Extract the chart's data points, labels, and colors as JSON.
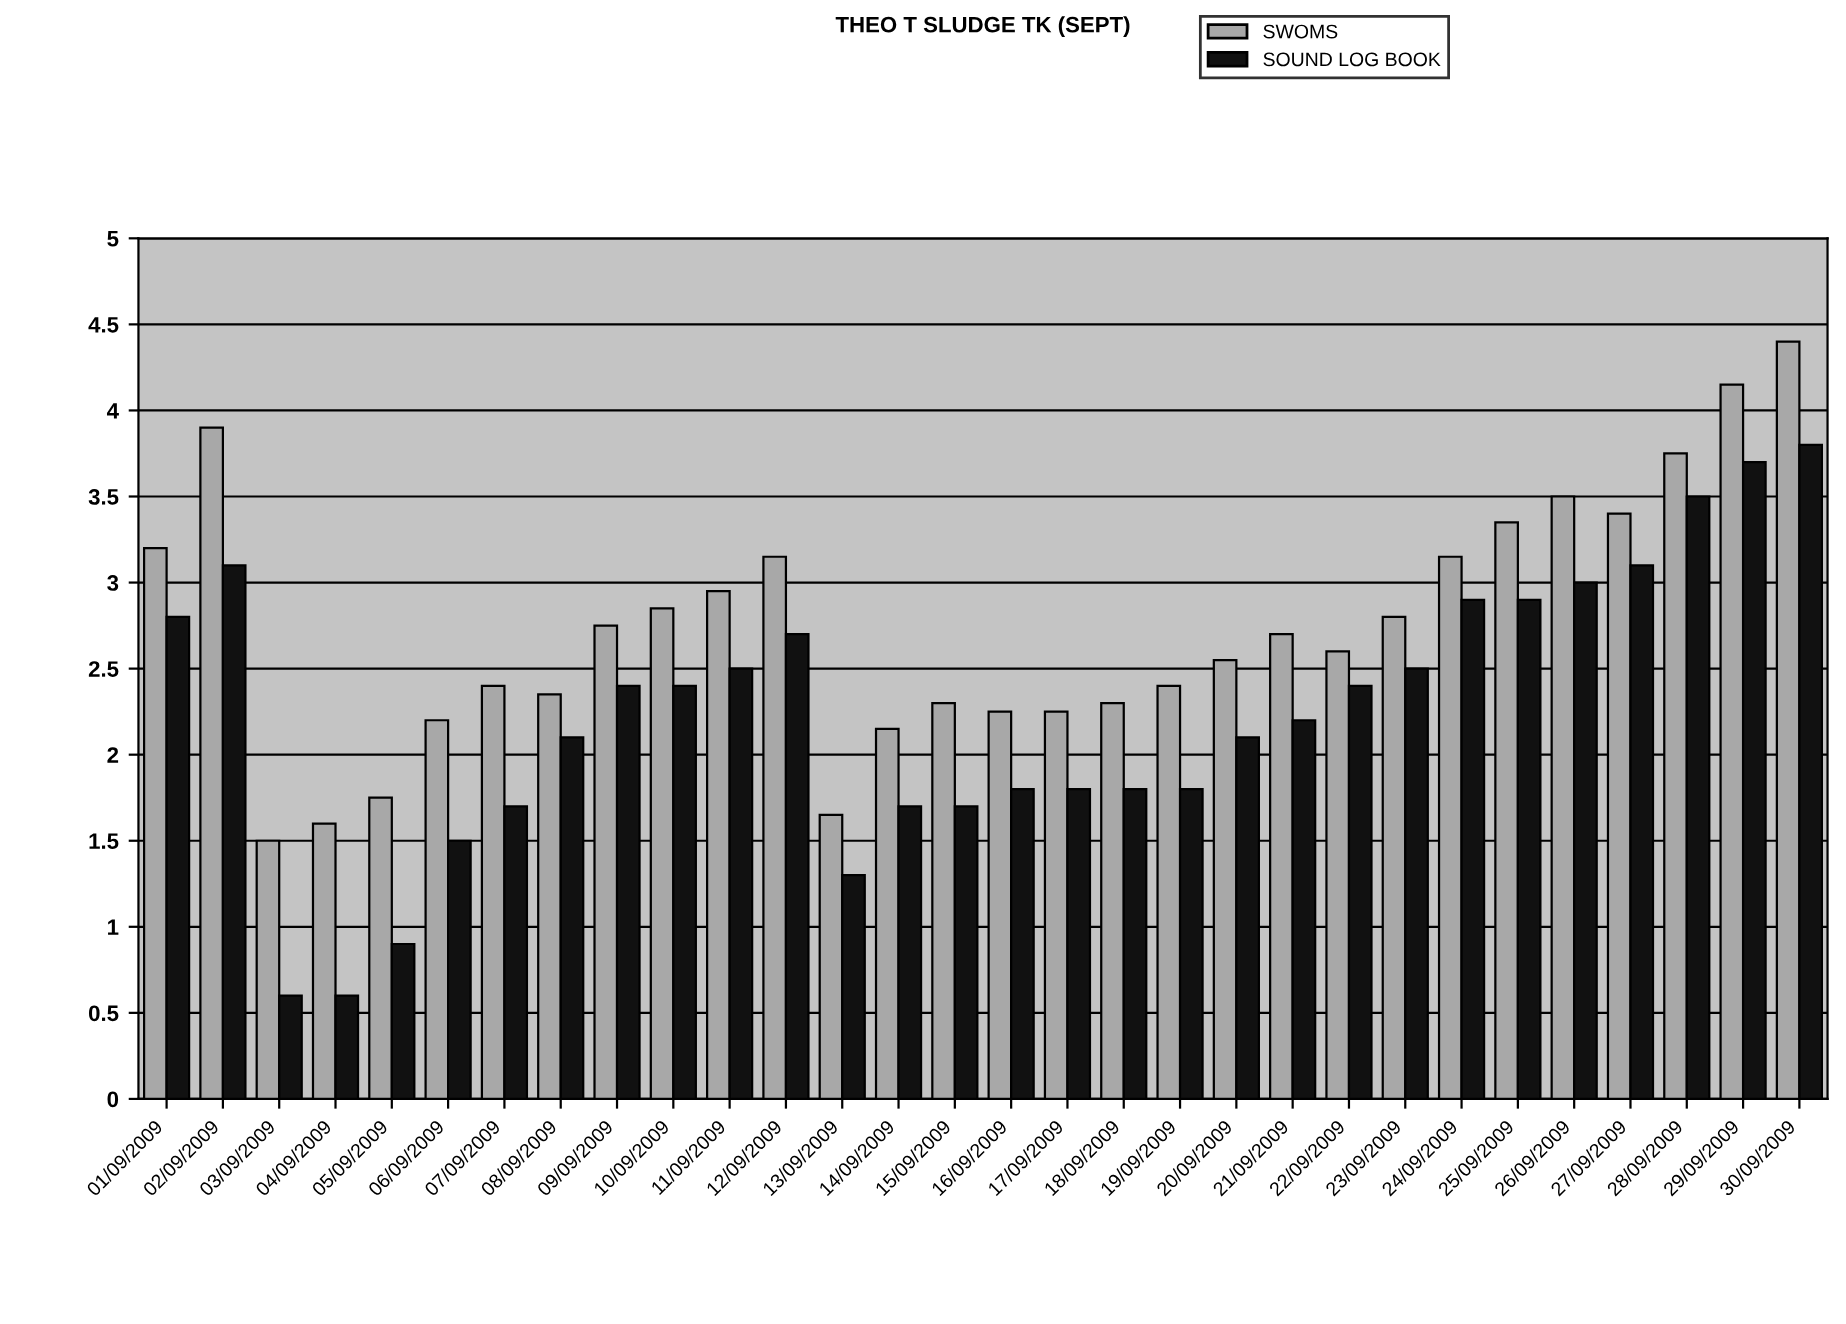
{
  "chart_data": {
    "type": "bar",
    "title": "THEO T SLUDGE TK (SEPT)",
    "categories": [
      "01/09/2009",
      "02/09/2009",
      "03/09/2009",
      "04/09/2009",
      "05/09/2009",
      "06/09/2009",
      "07/09/2009",
      "08/09/2009",
      "09/09/2009",
      "10/09/2009",
      "11/09/2009",
      "12/09/2009",
      "13/09/2009",
      "14/09/2009",
      "15/09/2009",
      "16/09/2009",
      "17/09/2009",
      "18/09/2009",
      "19/09/2009",
      "20/09/2009",
      "21/09/2009",
      "22/09/2009",
      "23/09/2009",
      "24/09/2009",
      "25/09/2009",
      "26/09/2009",
      "27/09/2009",
      "28/09/2009",
      "29/09/2009",
      "30/09/2009"
    ],
    "series": [
      {
        "name": "SWOMS",
        "color": "#a8a8a8",
        "values": [
          3.2,
          3.9,
          1.5,
          1.6,
          1.75,
          2.2,
          2.4,
          2.35,
          2.75,
          2.85,
          2.95,
          3.15,
          1.65,
          2.15,
          2.3,
          2.25,
          2.25,
          2.3,
          2.4,
          2.55,
          2.7,
          2.6,
          2.8,
          3.15,
          3.35,
          3.5,
          3.4,
          3.75,
          4.15,
          4.4
        ]
      },
      {
        "name": "SOUND LOG BOOK",
        "color": "#111111",
        "values": [
          2.8,
          3.1,
          0.6,
          0.6,
          0.9,
          1.5,
          1.7,
          2.1,
          2.4,
          2.4,
          2.5,
          2.7,
          1.3,
          1.7,
          1.7,
          1.8,
          1.8,
          1.8,
          1.8,
          2.1,
          2.2,
          2.4,
          2.5,
          2.9,
          2.9,
          3.0,
          3.1,
          3.5,
          3.7,
          3.8
        ]
      }
    ],
    "ylim": [
      0,
      5
    ],
    "yticks": [
      0,
      0.5,
      1,
      1.5,
      2,
      2.5,
      3,
      3.5,
      4,
      4.5,
      5
    ],
    "grid": "y",
    "legend": "top right"
  }
}
